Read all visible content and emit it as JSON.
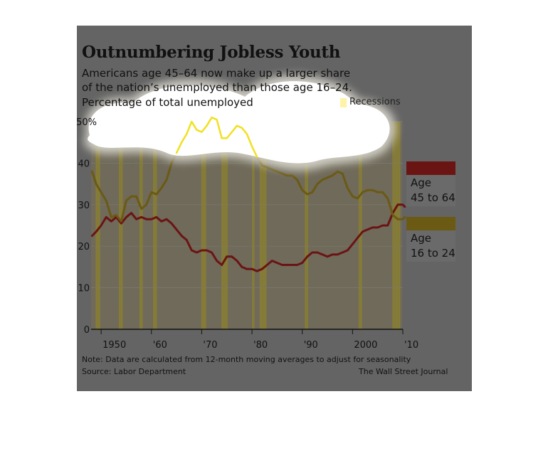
{
  "title": "Outnumbering Jobless Youth",
  "subtitle_line1": "Americans age 45–64 now make up a larger share",
  "subtitle_line2": "of the nation’s unemployed than those age 16–24.",
  "ylabel": "Percentage of total unemployed",
  "recession_legend": "Recessions",
  "legend": {
    "older_line1": "Age",
    "older_line2": "45 to 64",
    "younger_line1": "Age",
    "younger_line2": "16 to 24"
  },
  "note": "Note: Data are calculated from 12-month moving averages to adjust for seasonality",
  "source": "Source: Labor Department",
  "credit": "The Wall Street Journal",
  "colors": {
    "age_45_64": "#6b1414",
    "age_16_24": "#6b5a14",
    "recession": "#8a7e33",
    "panel": "#646464"
  },
  "chart_data": {
    "type": "line",
    "xlim": [
      1948,
      2010
    ],
    "ylim": [
      0,
      50
    ],
    "ytick_labels": [
      "0",
      "10",
      "20",
      "30",
      "40",
      "50%"
    ],
    "yticks": [
      0,
      10,
      20,
      30,
      40,
      50
    ],
    "xtick_labels": [
      "1950",
      "'60",
      "'70",
      "'80",
      "'90",
      "2000",
      "'10"
    ],
    "xticks": [
      1950,
      1960,
      1970,
      1980,
      1990,
      2000,
      2010
    ],
    "recessions": [
      [
        1948.9,
        1949.8
      ],
      [
        1953.5,
        1954.3
      ],
      [
        1957.6,
        1958.3
      ],
      [
        1960.3,
        1961.1
      ],
      [
        1969.9,
        1970.9
      ],
      [
        1973.9,
        1975.2
      ],
      [
        1980.0,
        1980.5
      ],
      [
        1981.5,
        1982.9
      ],
      [
        1990.5,
        1991.2
      ],
      [
        2001.2,
        2001.9
      ],
      [
        2007.9,
        2009.5
      ]
    ],
    "series": [
      {
        "name": "Age 45 to 64",
        "x": [
          1948.2,
          1949,
          1950,
          1951,
          1952,
          1953,
          1954,
          1955,
          1956,
          1957,
          1958,
          1959,
          1960,
          1961,
          1962,
          1963,
          1964,
          1965,
          1966,
          1967,
          1968,
          1969,
          1970,
          1971,
          1972,
          1973,
          1974,
          1975,
          1976,
          1977,
          1978,
          1979,
          1980,
          1981,
          1982,
          1983,
          1984,
          1985,
          1986,
          1987,
          1988,
          1989,
          1990,
          1991,
          1992,
          1993,
          1994,
          1995,
          1996,
          1997,
          1998,
          1999,
          2000,
          2001,
          2002,
          2003,
          2004,
          2005,
          2006,
          2007,
          2008,
          2009,
          2010,
          2010.4
        ],
        "values": [
          22.5,
          23.5,
          25,
          27,
          26,
          27,
          25.5,
          27,
          28,
          26.5,
          27,
          26.5,
          26.5,
          27,
          26,
          26.5,
          25.5,
          24,
          22.5,
          21.5,
          19,
          18.5,
          19,
          19,
          18.5,
          16.5,
          15.5,
          17.5,
          17.5,
          16.5,
          15,
          14.5,
          14.5,
          14,
          14.5,
          15.5,
          16.5,
          16,
          15.5,
          15.5,
          15.5,
          15.5,
          16,
          17.5,
          18.5,
          18.5,
          18,
          17.5,
          18,
          18,
          18.5,
          19,
          20.5,
          22,
          23.5,
          24,
          24.5,
          24.5,
          25,
          25,
          28,
          30,
          30,
          29.5
        ]
      },
      {
        "name": "Age 16 to 24",
        "x": [
          1948.2,
          1949,
          1950,
          1951,
          1952,
          1953,
          1954,
          1955,
          1956,
          1957,
          1958,
          1959,
          1960,
          1961,
          1962,
          1963,
          1964,
          1965,
          1966,
          1967,
          1968,
          1969,
          1970,
          1971,
          1972,
          1973,
          1974,
          1975,
          1976,
          1977,
          1978,
          1979,
          1980,
          1981,
          1982,
          1983,
          1984,
          1985,
          1986,
          1987,
          1988,
          1989,
          1990,
          1991,
          1992,
          1993,
          1994,
          1995,
          1996,
          1997,
          1998,
          1999,
          2000,
          2001,
          2002,
          2003,
          2004,
          2005,
          2006,
          2007,
          2008,
          2009,
          2010,
          2010.4
        ],
        "values": [
          38,
          35,
          33,
          31,
          27,
          27.5,
          26,
          31,
          32,
          32,
          29,
          30,
          33,
          32.5,
          34,
          36,
          40,
          42.5,
          45,
          47,
          50,
          48,
          47.5,
          49,
          51,
          50.5,
          46,
          46,
          47.5,
          49,
          48.5,
          47,
          44,
          41.5,
          39.5,
          39,
          38.5,
          38,
          37.5,
          37,
          37,
          36,
          33.5,
          32.5,
          33,
          35,
          36,
          36.5,
          37,
          38,
          37.5,
          34,
          32,
          31.5,
          33,
          33.5,
          33.5,
          33,
          33,
          31.5,
          27.5,
          26.5,
          26.5,
          27
        ]
      }
    ]
  }
}
